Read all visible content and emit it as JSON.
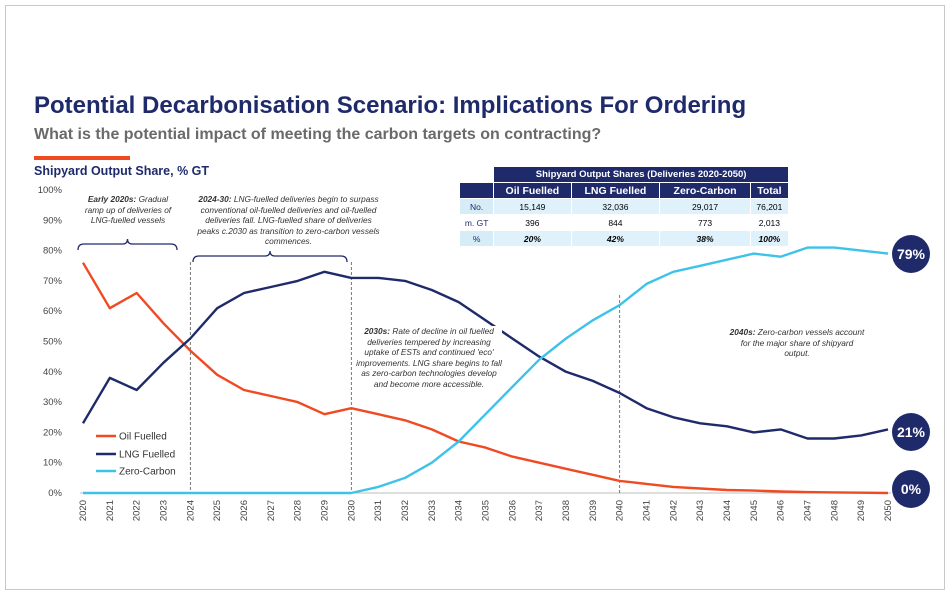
{
  "page": {
    "title": "Potential Decarbonisation Scenario: Implications For Ordering",
    "subtitle": "What is the potential impact of meeting the carbon targets on contracting?",
    "accent_color": "#f04a23",
    "brand_color": "#1f2a6b"
  },
  "chart_data": {
    "type": "line",
    "title": "Shipyard Output Share, % GT",
    "xlabel": "",
    "ylabel": "",
    "x": [
      2020,
      2021,
      2022,
      2023,
      2024,
      2025,
      2026,
      2027,
      2028,
      2029,
      2030,
      2031,
      2032,
      2033,
      2034,
      2035,
      2036,
      2037,
      2038,
      2039,
      2040,
      2041,
      2042,
      2043,
      2044,
      2045,
      2046,
      2047,
      2048,
      2049,
      2050
    ],
    "x_tick_labels": [
      "2020",
      "2021",
      "2022",
      "2023",
      "2024",
      "2025",
      "2026",
      "2027",
      "2028",
      "2029",
      "2030",
      "2031",
      "2032",
      "2033",
      "2034",
      "2035",
      "2036",
      "2037",
      "2038",
      "2039",
      "2040",
      "2041",
      "2042",
      "2043",
      "2044",
      "2045",
      "2046",
      "2047",
      "2048",
      "2049",
      "2050"
    ],
    "y_tick_labels": [
      "0%",
      "10%",
      "20%",
      "30%",
      "40%",
      "50%",
      "60%",
      "70%",
      "80%",
      "90%",
      "100%"
    ],
    "ylim": [
      0,
      100
    ],
    "grid": false,
    "legend_position": "bottom-left",
    "series": [
      {
        "name": "Oil Fuelled",
        "color": "#f04a23",
        "values": [
          76,
          61,
          66,
          56,
          47,
          39,
          34,
          32,
          30,
          26,
          28,
          26,
          24,
          21,
          17,
          15,
          12,
          10,
          8,
          6,
          4,
          3,
          2,
          1.5,
          1,
          0.8,
          0.5,
          0.3,
          0.2,
          0.1,
          0
        ]
      },
      {
        "name": "LNG Fuelled",
        "color": "#1f2a6b",
        "values": [
          23,
          38,
          34,
          43,
          51,
          61,
          66,
          68,
          70,
          73,
          71,
          71,
          70,
          67,
          63,
          57,
          51,
          45,
          40,
          37,
          33,
          28,
          25,
          23,
          22,
          20,
          21,
          18,
          18,
          19,
          21
        ]
      },
      {
        "name": "Zero-Carbon",
        "color": "#3fc2ea",
        "values": [
          0,
          0,
          0,
          0,
          0,
          0,
          0,
          0,
          0,
          0,
          0,
          2,
          5,
          10,
          17,
          26,
          35,
          44,
          51,
          57,
          62,
          69,
          73,
          75,
          77,
          79,
          78,
          81,
          81,
          80,
          79
        ]
      }
    ],
    "end_labels": [
      {
        "series": "Zero-Carbon",
        "label": "79%"
      },
      {
        "series": "LNG Fuelled",
        "label": "21%"
      },
      {
        "series": "Oil Fuelled",
        "label": "0%"
      }
    ],
    "annotations": [
      {
        "id": "early2020s",
        "bold": "Early 2020s:",
        "text": " Gradual ramp up of deliveries of LNG-fuelled vessels"
      },
      {
        "id": "2024-30",
        "bold": "2024-30:",
        "text": " LNG-fuelled deliveries begin to surpass conventional oil-fuelled deliveries and oil-fuelled deliveries fall. LNG-fuelled share of deliveries peaks c.2030 as transition to zero-carbon vessels commences."
      },
      {
        "id": "2030s",
        "bold": "2030s:",
        "text": " Rate of decline in oil fuelled deliveries tempered by increasing uptake of  ESTs and continued 'eco' improvements. LNG share begins to fall as zero-carbon technologies develop and become more accessible."
      },
      {
        "id": "2040s",
        "bold": "2040s:",
        "text": " Zero-carbon vessels account for the major share of shipyard output."
      }
    ],
    "vertical_markers": [
      2024,
      2030,
      2040
    ]
  },
  "table": {
    "title": "Shipyard Output Shares (Deliveries 2020-2050)",
    "columns": [
      "Oil Fuelled",
      "LNG Fuelled",
      "Zero-Carbon",
      "Total"
    ],
    "rows": [
      {
        "label": "No.",
        "values": [
          "15,149",
          "32,036",
          "29,017",
          "76,201"
        ]
      },
      {
        "label": "m. GT",
        "values": [
          "396",
          "844",
          "773",
          "2,013"
        ]
      },
      {
        "label": "%",
        "values": [
          "20%",
          "42%",
          "38%",
          "100%"
        ]
      }
    ]
  }
}
